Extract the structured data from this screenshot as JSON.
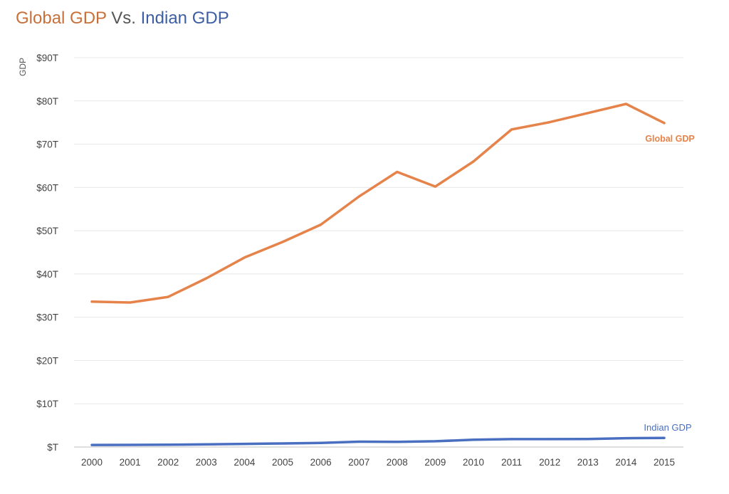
{
  "title": {
    "part1": "Global GDP",
    "part2": " Vs. ",
    "part3": "Indian GDP"
  },
  "colors": {
    "global": "#e5834a",
    "india": "#4a6fc0",
    "title_global": "#c8703a",
    "title_india": "#3e5ea3"
  },
  "chart_data": {
    "type": "line",
    "title": "Global GDP Vs. Indian GDP",
    "xlabel": "",
    "ylabel": "GDP",
    "x": [
      "2000",
      "2001",
      "2002",
      "2003",
      "2004",
      "2005",
      "2006",
      "2007",
      "2008",
      "2009",
      "2010",
      "2011",
      "2012",
      "2013",
      "2014",
      "2015"
    ],
    "ylim": [
      0,
      90
    ],
    "yticks": [
      "$T",
      "$10T",
      "$20T",
      "$30T",
      "$40T",
      "$50T",
      "$60T",
      "$70T",
      "$80T",
      "$90T"
    ],
    "grid": true,
    "series": [
      {
        "name": "Global GDP",
        "values": [
          33.6,
          33.4,
          34.7,
          39.0,
          43.8,
          47.4,
          51.4,
          57.9,
          63.6,
          60.2,
          66.0,
          73.4,
          75.1,
          77.2,
          79.3,
          74.9
        ]
      },
      {
        "name": "Indian GDP",
        "values": [
          0.47,
          0.49,
          0.52,
          0.62,
          0.72,
          0.83,
          0.94,
          1.24,
          1.2,
          1.34,
          1.68,
          1.82,
          1.83,
          1.86,
          2.04,
          2.1
        ]
      }
    ]
  }
}
